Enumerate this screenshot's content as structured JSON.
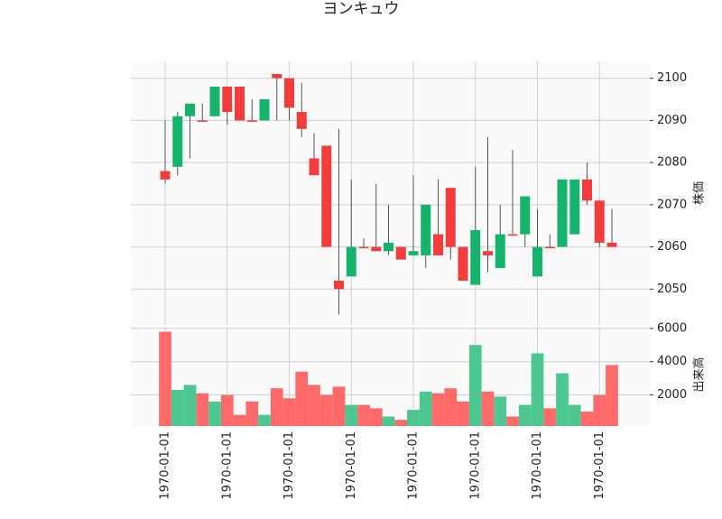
{
  "chart_data": {
    "type": "candlestick",
    "title": "ヨンキュウ",
    "y_label": "株価",
    "y2_label": "出来高",
    "categories": [
      "1970-01-01",
      null,
      null,
      null,
      null,
      "1970-01-01",
      null,
      null,
      null,
      null,
      "1970-01-01",
      null,
      null,
      null,
      null,
      "1970-01-01",
      null,
      null,
      null,
      null,
      "1970-01-01",
      null,
      null,
      null,
      null,
      "1970-01-01",
      null,
      null,
      null,
      null,
      "1970-01-01",
      null,
      null,
      null,
      null,
      "1970-01-01",
      null
    ],
    "open": [
      2078,
      2079,
      2091,
      2090,
      2091,
      2098,
      2098,
      2090,
      2090,
      2101,
      2100,
      2092,
      2081,
      2084,
      2052,
      2053,
      2060,
      2060,
      2059,
      2060,
      2058,
      2058,
      2063,
      2074,
      2060,
      2051,
      2059,
      2055,
      2063,
      2063,
      2053,
      2060,
      2060,
      2063,
      2076,
      2071,
      2061
    ],
    "high": [
      2090,
      2092,
      2094,
      2094,
      2098,
      2098,
      2098,
      2095,
      2095,
      2101,
      2100,
      2099,
      2087,
      2084,
      2088,
      2076,
      2062,
      2075,
      2070,
      2060,
      2077,
      2070,
      2076,
      2074,
      2060,
      2079,
      2086,
      2070,
      2083,
      2072,
      2069,
      2063,
      2076,
      2076,
      2080,
      2071,
      2069
    ],
    "low": [
      2075,
      2077,
      2081,
      2090,
      2091,
      2089,
      2090,
      2090,
      2090,
      2090,
      2090,
      2086,
      2077,
      2060,
      2044,
      2053,
      2060,
      2059,
      2058,
      2057,
      2058,
      2055,
      2058,
      2057,
      2052,
      2051,
      2054,
      2055,
      2063,
      2060,
      2053,
      2060,
      2060,
      2063,
      2070,
      2060,
      2060
    ],
    "close": [
      2076,
      2091,
      2094,
      2090,
      2098,
      2092,
      2090,
      2090,
      2095,
      2100,
      2093,
      2088,
      2077,
      2060,
      2050,
      2060,
      2060,
      2059,
      2061,
      2057,
      2059,
      2070,
      2058,
      2060,
      2052,
      2064,
      2058,
      2063,
      2063,
      2072,
      2060,
      2060,
      2076,
      2076,
      2071,
      2061,
      2060
    ],
    "volume": [
      5800,
      2300,
      2600,
      2100,
      1600,
      2000,
      800,
      1600,
      800,
      2400,
      1800,
      3400,
      2600,
      2000,
      2500,
      1400,
      1400,
      1200,
      700,
      500,
      1100,
      2200,
      2100,
      2400,
      1600,
      5000,
      2200,
      1900,
      700,
      1400,
      4500,
      1200,
      3300,
      1400,
      1000,
      2000,
      3800
    ],
    "up_color": "#16b36c",
    "down_color": "#f53c3c",
    "volume_up_color": "#4cc78f",
    "volume_down_color": "#ff6b6b",
    "ylim": [
      2041.5,
      2104
    ],
    "yticks": [
      2050,
      2060,
      2070,
      2080,
      2090,
      2100
    ],
    "y2lim": [
      130,
      6100
    ],
    "y2ticks": [
      2000,
      4000,
      6000
    ],
    "grid": true
  }
}
